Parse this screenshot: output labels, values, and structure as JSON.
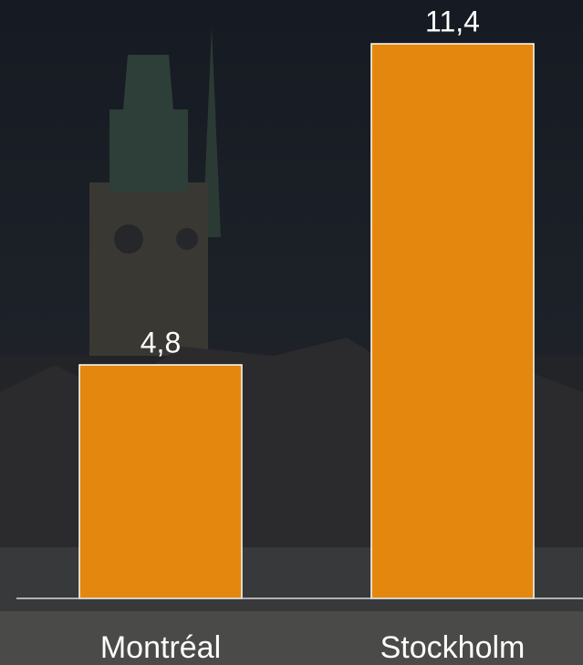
{
  "chart_data": {
    "type": "bar",
    "categories": [
      "Montréal",
      "Stockholm"
    ],
    "values": [
      4.8,
      11.4
    ],
    "value_labels": [
      "4,8",
      "11,4"
    ],
    "color": "#e3870e",
    "ylim": [
      0,
      11.4
    ]
  }
}
